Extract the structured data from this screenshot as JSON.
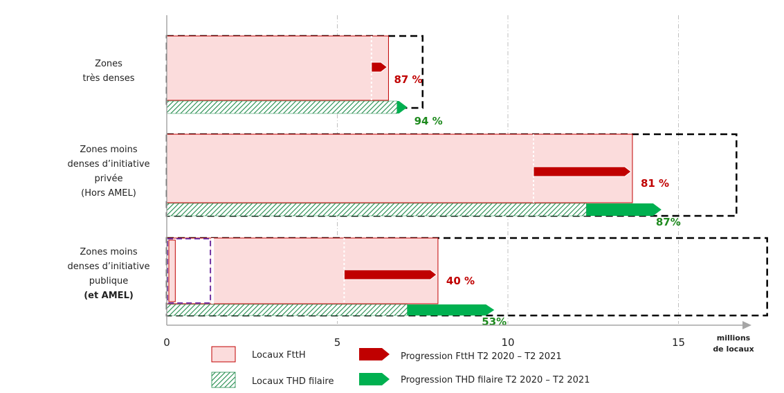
{
  "colors": {
    "ftth_fill": "#fbdcdc",
    "ftth_border": "#c00000",
    "thd_green": "#00b050",
    "thd_hatch": "#1e8a4a",
    "pct_red": "#c00000",
    "pct_green": "#1e8a1e",
    "dashed_black": "#000000",
    "dashed_purple": "#7030a0",
    "amel_text": "#7030a0",
    "grid": "#bfbfbf",
    "axis": "#a6a6a6"
  },
  "chart_data": {
    "type": "bar",
    "orientation": "horizontal",
    "xlim": [
      0,
      17.5
    ],
    "xticks": [
      0,
      5,
      10,
      15
    ],
    "xtick_labels": [
      "0",
      "5",
      "10",
      "15"
    ],
    "x_unit_label": [
      "millions",
      "de locaux"
    ],
    "grid": "vertical dash-dot",
    "categories": [
      {
        "label_lines": [
          "Zones",
          "très denses"
        ],
        "total_locaux": 7.5,
        "ftth_2020": 6.0,
        "ftth_2021": 6.5,
        "ftth_pct": "87 %",
        "thd_2020": 6.75,
        "thd_2021": 7.05,
        "thd_pct": "94 %"
      },
      {
        "label_lines": [
          "Zones moins",
          "denses d’initiative",
          "privée",
          "(Hors AMEL)"
        ],
        "total_locaux": 16.7,
        "ftth_2020": 10.75,
        "ftth_2021": 13.65,
        "ftth_pct": "81 %",
        "thd_2020": 12.3,
        "thd_2021": 14.5,
        "thd_pct": "87%"
      },
      {
        "label_lines": [
          "Zones moins",
          "denses d’initiative",
          "publique"
        ],
        "label_extra": "(et AMEL)",
        "total_locaux": 17.6,
        "amel_locaux": 1.3,
        "amel_ftth": 0.25,
        "ftth_2020": 5.2,
        "ftth_2021": 7.95,
        "ftth_pct": "40 %",
        "thd_2020": 7.05,
        "thd_2021": 9.6,
        "thd_pct": "53%"
      }
    ],
    "legend": [
      {
        "key": "ftth_fill",
        "label": "Locaux FttH"
      },
      {
        "key": "thd_fill",
        "label": "Locaux THD filaire"
      },
      {
        "key": "ftth_arrow",
        "label": "Progression FttH T2 2020 – T2 2021"
      },
      {
        "key": "thd_arrow",
        "label": "Progression THD filaire  T2 2020 – T2 2021"
      }
    ]
  }
}
